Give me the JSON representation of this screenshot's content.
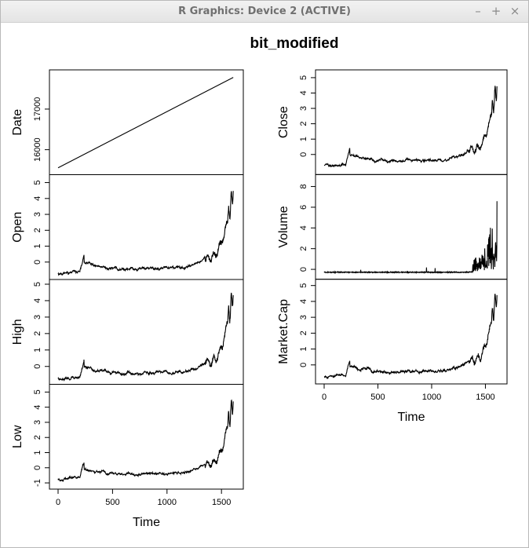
{
  "window": {
    "title": "R Graphics: Device 2 (ACTIVE)",
    "buttons": [
      {
        "name": "minimize-button",
        "glyph": "–"
      },
      {
        "name": "maximize-button",
        "glyph": "+"
      },
      {
        "name": "close-button",
        "glyph": "×"
      }
    ]
  },
  "chart_data": {
    "type": "line",
    "title": "bit_modified",
    "xlabel": "Time",
    "xlim": [
      0,
      1650
    ],
    "x_ticks": [
      0,
      500,
      1000,
      1500
    ],
    "x_tick_labels": [
      "0",
      "500",
      "1000",
      "1500"
    ],
    "n_points": 1609,
    "panels": [
      {
        "name": "Date",
        "column": 0,
        "ylim": [
          15500,
          17850
        ],
        "y_ticks": [
          16000,
          17000
        ],
        "y_tick_labels": [
          "16000",
          "17000"
        ],
        "shape": "linear",
        "start": 15555,
        "end": 17780
      },
      {
        "name": "Open",
        "column": 0,
        "ylim": [
          -0.8,
          5.2
        ],
        "y_ticks": [
          0,
          1,
          2,
          3,
          4,
          5
        ],
        "y_tick_labels": [
          "0",
          "1",
          "2",
          "3",
          "4",
          "5"
        ],
        "shape": "price",
        "seed": 11
      },
      {
        "name": "High",
        "column": 0,
        "ylim": [
          -0.8,
          5.0
        ],
        "y_ticks": [
          0,
          1,
          2,
          3,
          4,
          5
        ],
        "y_tick_labels": [
          "0",
          "1",
          "2",
          "3",
          "4",
          "5"
        ],
        "shape": "price",
        "seed": 23
      },
      {
        "name": "Low",
        "column": 0,
        "ylim": [
          -1.1,
          5.2
        ],
        "y_ticks": [
          -1,
          0,
          1,
          2,
          3,
          4,
          5
        ],
        "y_tick_labels": [
          "-1",
          "0",
          "1",
          "2",
          "3",
          "4",
          "5"
        ],
        "shape": "price",
        "seed": 37
      },
      {
        "name": "Close",
        "column": 1,
        "ylim": [
          -1.0,
          5.2
        ],
        "y_ticks": [
          0,
          1,
          2,
          3,
          4,
          5
        ],
        "y_tick_labels": [
          "0",
          "1",
          "2",
          "3",
          "4",
          "5"
        ],
        "shape": "price",
        "seed": 41
      },
      {
        "name": "Volume",
        "column": 1,
        "ylim": [
          -0.5,
          8.7
        ],
        "y_ticks": [
          0,
          2,
          4,
          6,
          8
        ],
        "y_tick_labels": [
          "0",
          "2",
          "4",
          "6",
          "8"
        ],
        "shape": "volume",
        "seed": 53
      },
      {
        "name": "Market.Cap",
        "column": 1,
        "ylim": [
          -0.9,
          5.1
        ],
        "y_ticks": [
          0,
          1,
          2,
          3,
          4,
          5
        ],
        "y_tick_labels": [
          "0",
          "1",
          "2",
          "3",
          "4",
          "5"
        ],
        "shape": "price",
        "seed": 67
      }
    ]
  }
}
